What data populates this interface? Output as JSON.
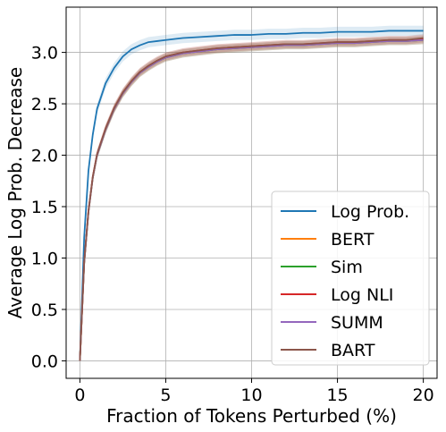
{
  "chart_data": {
    "type": "line",
    "title": "",
    "xlabel": "Fraction of Tokens Perturbed (%)",
    "ylabel": "Average Log Prob. Decrease",
    "xlim": [
      -0.8,
      20.8
    ],
    "ylim": [
      -0.17,
      3.44
    ],
    "xticks": [
      0,
      5,
      10,
      15,
      20
    ],
    "xtick_labels": [
      "0",
      "5",
      "10",
      "15",
      "20"
    ],
    "yticks": [
      0.0,
      0.5,
      1.0,
      1.5,
      2.0,
      2.5,
      3.0
    ],
    "ytick_labels": [
      "0.0",
      "0.5",
      "1.0",
      "1.5",
      "2.0",
      "2.5",
      "3.0"
    ],
    "grid": true,
    "legend_position": "lower-right",
    "x": [
      0,
      0.25,
      0.5,
      0.75,
      1,
      1.5,
      2,
      2.5,
      3,
      3.5,
      4,
      4.5,
      5,
      6,
      7,
      8,
      9,
      10,
      11,
      12,
      13,
      14,
      15,
      16,
      17,
      18,
      19,
      20
    ],
    "series": [
      {
        "name": "Log Prob.",
        "color": "#1f77b4",
        "band": 0.05,
        "values": [
          0.0,
          1.2,
          1.85,
          2.2,
          2.45,
          2.7,
          2.85,
          2.96,
          3.03,
          3.07,
          3.1,
          3.11,
          3.12,
          3.14,
          3.15,
          3.16,
          3.17,
          3.17,
          3.18,
          3.18,
          3.19,
          3.19,
          3.2,
          3.2,
          3.2,
          3.21,
          3.21,
          3.21
        ]
      },
      {
        "name": "BERT",
        "color": "#ff7f0e",
        "band": 0.04,
        "values": [
          0.0,
          0.95,
          1.45,
          1.78,
          2.0,
          2.25,
          2.45,
          2.6,
          2.71,
          2.8,
          2.86,
          2.91,
          2.95,
          2.99,
          3.01,
          3.03,
          3.04,
          3.05,
          3.06,
          3.07,
          3.07,
          3.08,
          3.09,
          3.09,
          3.1,
          3.11,
          3.11,
          3.12
        ]
      },
      {
        "name": "Sim",
        "color": "#2ca02c",
        "band": 0.04,
        "values": [
          0.0,
          0.95,
          1.45,
          1.78,
          2.0,
          2.25,
          2.45,
          2.6,
          2.71,
          2.8,
          2.86,
          2.91,
          2.95,
          2.99,
          3.01,
          3.03,
          3.04,
          3.05,
          3.06,
          3.07,
          3.07,
          3.08,
          3.09,
          3.09,
          3.1,
          3.11,
          3.11,
          3.12
        ]
      },
      {
        "name": "Log NLI",
        "color": "#d62728",
        "band": 0.04,
        "values": [
          0.0,
          0.96,
          1.46,
          1.79,
          2.01,
          2.26,
          2.46,
          2.61,
          2.72,
          2.81,
          2.87,
          2.92,
          2.96,
          3.0,
          3.02,
          3.04,
          3.05,
          3.06,
          3.07,
          3.08,
          3.08,
          3.09,
          3.1,
          3.1,
          3.11,
          3.12,
          3.12,
          3.13
        ]
      },
      {
        "name": "SUMM",
        "color": "#9467bd",
        "band": 0.04,
        "values": [
          0.0,
          0.95,
          1.45,
          1.78,
          2.0,
          2.25,
          2.45,
          2.6,
          2.71,
          2.8,
          2.86,
          2.91,
          2.95,
          2.99,
          3.01,
          3.03,
          3.04,
          3.05,
          3.06,
          3.07,
          3.07,
          3.08,
          3.09,
          3.09,
          3.1,
          3.11,
          3.11,
          3.12
        ]
      },
      {
        "name": "BART",
        "color": "#8c564b",
        "band": 0.04,
        "values": [
          0.0,
          0.96,
          1.46,
          1.79,
          2.01,
          2.26,
          2.46,
          2.61,
          2.72,
          2.81,
          2.87,
          2.92,
          2.96,
          3.0,
          3.02,
          3.04,
          3.05,
          3.06,
          3.07,
          3.08,
          3.08,
          3.09,
          3.1,
          3.1,
          3.11,
          3.12,
          3.12,
          3.14
        ]
      }
    ]
  }
}
